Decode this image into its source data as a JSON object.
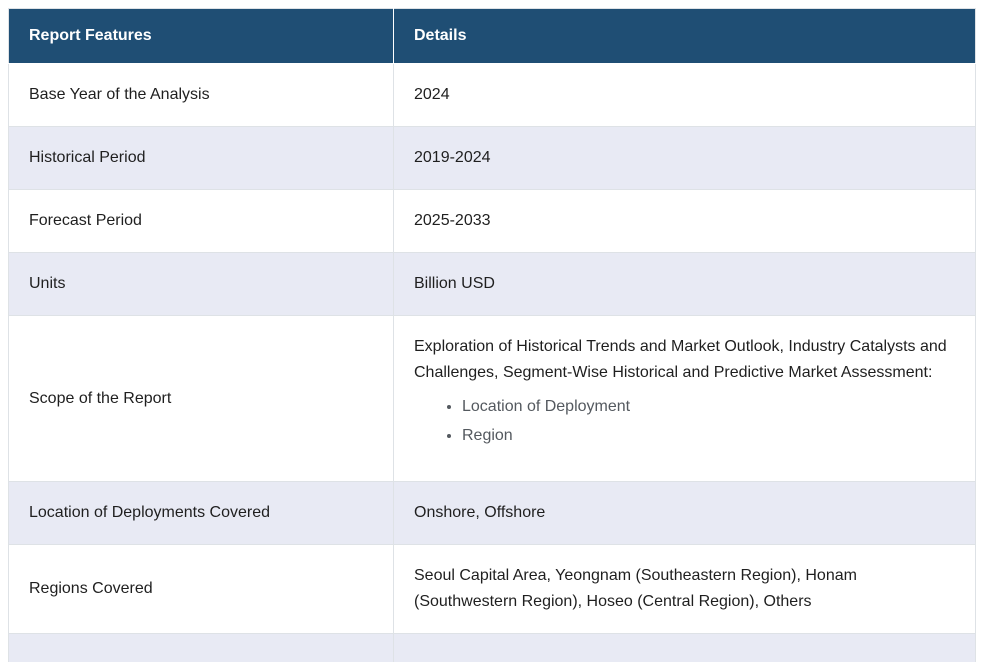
{
  "table": {
    "headers": {
      "feature": "Report Features",
      "detail": "Details"
    },
    "rows": [
      {
        "feature": "Base Year of the Analysis",
        "detail": "2024"
      },
      {
        "feature": "Historical Period",
        "detail": "2019-2024"
      },
      {
        "feature": "Forecast Period",
        "detail": "2025-2033"
      },
      {
        "feature": "Units",
        "detail": "Billion USD"
      },
      {
        "feature": "Scope of the Report",
        "detail": "Exploration of Historical Trends and Market Outlook, Industry Catalysts and Challenges, Segment-Wise Historical and Predictive Market Assessment:",
        "bullets": [
          "Location of Deployment",
          "Region"
        ]
      },
      {
        "feature": "Location of Deployments Covered",
        "detail": "Onshore, Offshore"
      },
      {
        "feature": "Regions Covered",
        "detail": "Seoul Capital Area, Yeongnam (Southeastern Region), Honam (Southwestern Region), Hoseo (Central Region), Others"
      }
    ],
    "colors": {
      "header_bg": "#1f4e74",
      "header_text": "#ffffff",
      "alt_row_bg": "#e8eaf4",
      "row_bg": "#ffffff",
      "border": "#dee2e6",
      "body_text": "#1f1f1f",
      "bullet_text": "#54595f"
    }
  }
}
